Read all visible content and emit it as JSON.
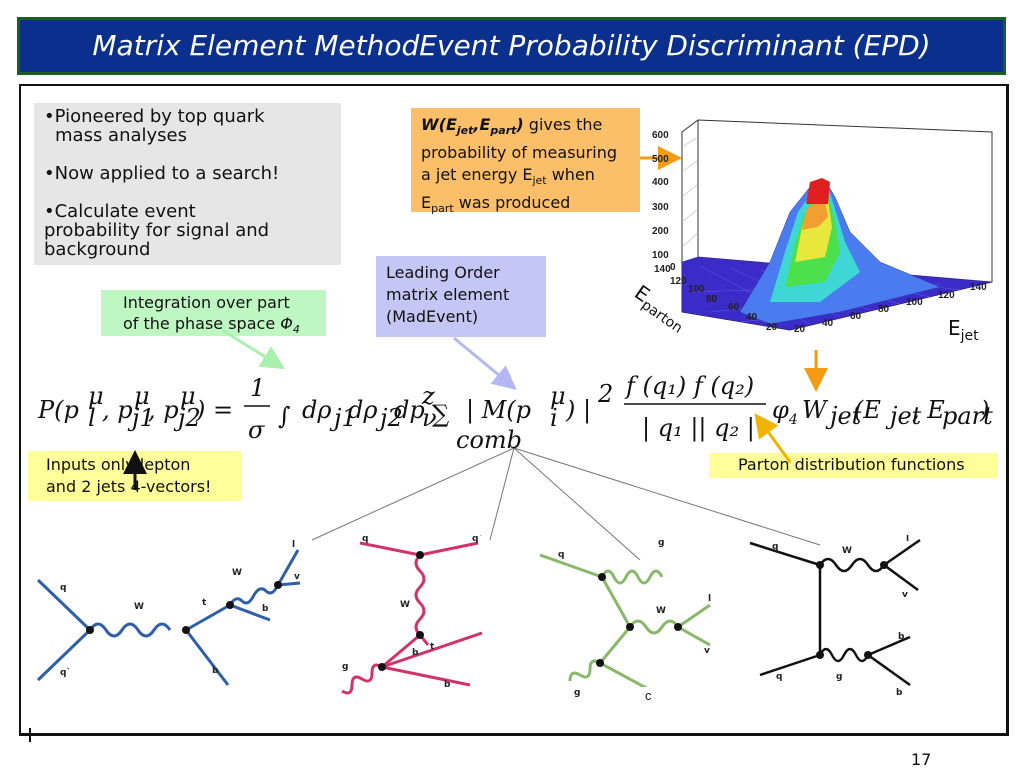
{
  "title": "Matrix Element MethodEvent Probability Discriminant (EPD)",
  "bullets": [
    {
      "line1": "•Pioneered by top quark",
      "line2": "mass analyses"
    },
    {
      "line1": "•Now applied to a search!"
    },
    {
      "line1": "•Calculate event",
      "line2": "probability for signal and",
      "line3": "background"
    }
  ],
  "w_box": {
    "func_w": "W(E",
    "sub_jet": "jet",
    "comma": ",E",
    "sub_part": "part",
    "close": ")",
    "text1": " gives the",
    "text2": "probability of measuring",
    "text3a": "a jet energy E",
    "text3sub": "jet",
    "text3b": " when",
    "text4a": "E",
    "text4sub": "part",
    "text4b": " was produced"
  },
  "lo_box": {
    "line1": "Leading Order",
    "line2": "matrix element",
    "line3": "(MadEvent)"
  },
  "int_box": {
    "line1": "Integration over part",
    "line2": "of the phase space ",
    "phi": "Φ",
    "phi_sub": "4"
  },
  "input_box": {
    "line1": "Inputs only lepton",
    "line2": "and 2 jets 4-vectors!"
  },
  "pdf_box": {
    "text": "Parton distribution functions"
  },
  "plot": {
    "y_ticks": [
      "600",
      "500",
      "400",
      "300",
      "200",
      "100",
      "0"
    ],
    "left_axis_ticks": [
      "140",
      "120",
      "100",
      "80",
      "60",
      "40",
      "20"
    ],
    "right_axis_ticks": [
      "20",
      "40",
      "60",
      "80",
      "100",
      "120",
      "140"
    ],
    "label_parton": "E",
    "label_parton_sub": "parton",
    "label_jet": "E",
    "label_jet_sub": "jet"
  },
  "equation": {
    "lhs": "P(p",
    "mu": "μ",
    "one": "1",
    "sigma": "σ",
    "comb": "comb",
    "phi4": "φ",
    "w": "W",
    "jet": "jet",
    "part": "part",
    "E": "E"
  },
  "feynman": {
    "d1": {
      "q": "q",
      "qbar": "q`",
      "W": "W",
      "t": "t",
      "W2": "W",
      "l": "l",
      "v": "v",
      "b": "b",
      "b2": "b"
    },
    "d2": {
      "q": "q",
      "qbar": "q`",
      "W": "W",
      "b": "b",
      "t": "t",
      "g": "g",
      "bbar": "b"
    },
    "d3": {
      "q": "q",
      "g": "g",
      "W": "W",
      "l": "l",
      "v": "v",
      "g2": "g",
      "c": "c"
    },
    "d4": {
      "q": "q",
      "W": "W",
      "l": "l",
      "v": "v",
      "q2": "q",
      "g": "g",
      "b": "b",
      "b2": "b"
    }
  },
  "page_number": "17",
  "colors": {
    "title_bg": "#0a2f8c",
    "title_border": "#1b5e20",
    "w_box": "#fbbf69",
    "lo_box": "#c4c7f5",
    "int_box": "#bff7c2",
    "yellow_box": "#ffff99",
    "blue_diagram": "#2e5fa8",
    "red_diagram": "#d0336a",
    "green_diagram": "#88b86a",
    "black_diagram": "#111111"
  }
}
